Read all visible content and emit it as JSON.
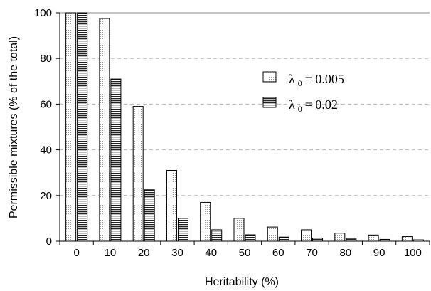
{
  "chart_data": {
    "type": "bar",
    "title": "",
    "xlabel": "Heritability (%)",
    "ylabel": "Permissible mixtures (% of the total)",
    "ylim": [
      0,
      100
    ],
    "yticks": [
      "0",
      "20",
      "40",
      "60",
      "80",
      "100"
    ],
    "ytick_values": [
      0,
      20,
      40,
      60,
      80,
      100
    ],
    "categories": [
      "0",
      "10",
      "20",
      "30",
      "40",
      "50",
      "60",
      "70",
      "80",
      "90",
      "100"
    ],
    "grid": "horizontal dashed",
    "legend_position": "upper-right",
    "series": [
      {
        "name": "λ 0 = 0.005",
        "legend_symbol": "λ",
        "legend_subscript": "0",
        "legend_value": "= 0.005",
        "pattern": "dotted",
        "values": [
          100,
          97.5,
          59,
          31,
          17,
          10,
          6.2,
          5,
          3.5,
          2.7,
          2
        ]
      },
      {
        "name": "λ 0 = 0.02",
        "legend_symbol": "λ",
        "legend_subscript": "0",
        "legend_value": "= 0.02",
        "pattern": "horizontal-lines",
        "values": [
          100,
          71,
          22.5,
          10,
          5,
          2.8,
          1.8,
          1.3,
          1.2,
          0.8,
          0.6
        ]
      }
    ]
  }
}
